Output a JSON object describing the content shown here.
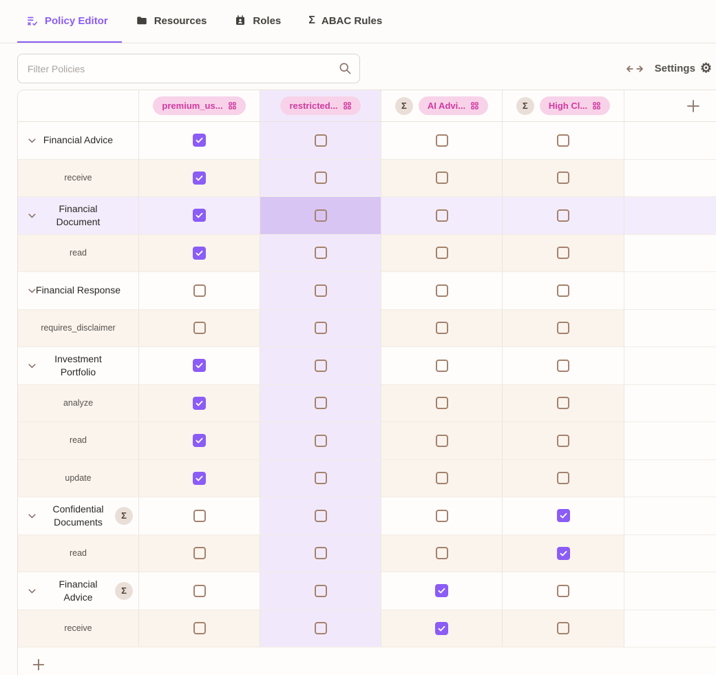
{
  "tabs": [
    {
      "label": "Policy Editor",
      "icon": "list-checks-icon",
      "active": true
    },
    {
      "label": "Resources",
      "icon": "folder-icon",
      "active": false
    },
    {
      "label": "Roles",
      "icon": "contact-card-icon",
      "active": false
    },
    {
      "label": "ABAC Rules",
      "icon": "sigma-icon",
      "active": false
    }
  ],
  "toolbar": {
    "filter_placeholder": "Filter Policies",
    "settings_label": "Settings"
  },
  "matrix": {
    "columns": [
      {
        "label": "premium_us...",
        "sigma": false,
        "highlighted": false
      },
      {
        "label": "restricted...",
        "sigma": false,
        "highlighted": true
      },
      {
        "label": "AI Advi...",
        "sigma": true,
        "highlighted": false
      },
      {
        "label": "High Cl...",
        "sigma": true,
        "highlighted": false
      }
    ],
    "add_column_label": "+",
    "add_row_label": "+",
    "rows": [
      {
        "label": "Financial Advice",
        "type": "parent",
        "sigma": false,
        "highlighted": false,
        "wrap": false,
        "checks": [
          true,
          false,
          false,
          false
        ]
      },
      {
        "label": "receive",
        "type": "child",
        "sigma": false,
        "highlighted": false,
        "wrap": false,
        "checks": [
          true,
          false,
          false,
          false
        ]
      },
      {
        "label": "Financial Document",
        "type": "parent",
        "sigma": false,
        "highlighted": true,
        "wrap": true,
        "checks": [
          true,
          false,
          false,
          false
        ]
      },
      {
        "label": "read",
        "type": "child",
        "sigma": false,
        "highlighted": false,
        "wrap": false,
        "checks": [
          true,
          false,
          false,
          false
        ]
      },
      {
        "label": "Financial Response",
        "type": "parent",
        "sigma": false,
        "highlighted": false,
        "wrap": false,
        "checks": [
          false,
          false,
          false,
          false
        ]
      },
      {
        "label": "requires_disclaimer",
        "type": "child",
        "sigma": false,
        "highlighted": false,
        "wrap": false,
        "checks": [
          false,
          false,
          false,
          false
        ]
      },
      {
        "label": "Investment Portfolio",
        "type": "parent",
        "sigma": false,
        "highlighted": false,
        "wrap": true,
        "checks": [
          true,
          false,
          false,
          false
        ]
      },
      {
        "label": "analyze",
        "type": "child",
        "sigma": false,
        "highlighted": false,
        "wrap": false,
        "checks": [
          true,
          false,
          false,
          false
        ]
      },
      {
        "label": "read",
        "type": "child",
        "sigma": false,
        "highlighted": false,
        "wrap": false,
        "checks": [
          true,
          false,
          false,
          false
        ]
      },
      {
        "label": "update",
        "type": "child",
        "sigma": false,
        "highlighted": false,
        "wrap": false,
        "checks": [
          true,
          false,
          false,
          false
        ]
      },
      {
        "label": "Confidential Documents",
        "type": "parent",
        "sigma": true,
        "highlighted": false,
        "wrap": true,
        "checks": [
          false,
          false,
          false,
          true
        ]
      },
      {
        "label": "read",
        "type": "child",
        "sigma": false,
        "highlighted": false,
        "wrap": false,
        "checks": [
          false,
          false,
          false,
          true
        ]
      },
      {
        "label": "Financial Advice",
        "type": "parent",
        "sigma": true,
        "highlighted": false,
        "wrap": true,
        "checks": [
          false,
          false,
          true,
          false
        ]
      },
      {
        "label": "receive",
        "type": "child",
        "sigma": false,
        "highlighted": false,
        "wrap": false,
        "checks": [
          false,
          false,
          true,
          false
        ]
      }
    ]
  },
  "icons": {
    "sigma_glyph": "Σ",
    "gear_glyph": "⚙"
  },
  "colors": {
    "accent_purple": "#8b5cf6",
    "pill_bg": "#f8d2e8",
    "pill_text": "#cf3aa0",
    "sigma_badge_bg": "#eadfd8",
    "sigma_badge_text": "#52433b",
    "column_highlight": "#f1e9fb",
    "row_highlight": "#f3ecfc",
    "intersection_highlight": "#d9c5f4",
    "child_row_bg": "#faf4ed",
    "checkbox_border": "#a5826c",
    "icon_brown": "#8a7266"
  }
}
